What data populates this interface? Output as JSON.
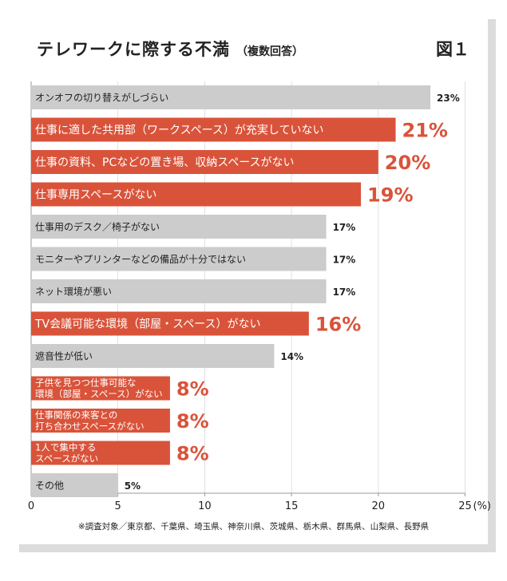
{
  "header": {
    "title": "テレワークに際する不満",
    "subtitle": "（複数回答）",
    "figure_label": "図１"
  },
  "footnote": "※調査対象／東京都、千葉県、埼玉県、神奈川県、茨城県、栃木県、群馬県、山梨県、長野県",
  "colors": {
    "highlight": "#d9533a",
    "normal": "#cccccc",
    "text": "#222222",
    "axis": "#999999"
  },
  "chart_data": {
    "type": "bar",
    "orientation": "horizontal",
    "title": "テレワークに際する不満（複数回答）",
    "categories": [
      [
        "オンオフの切り替えがしづらい"
      ],
      [
        "仕事に適した共用部（ワークスペース）が充実していない"
      ],
      [
        "仕事の資料、PCなどの置き場、収納スペースがない"
      ],
      [
        "仕事専用スペースがない"
      ],
      [
        "仕事用のデスク／椅子がない"
      ],
      [
        "モニターやプリンターなどの備品が十分ではない"
      ],
      [
        "ネット環境が悪い"
      ],
      [
        "TV会議可能な環境（部屋・スペース）がない"
      ],
      [
        "遮音性が低い"
      ],
      [
        "子供を見つつ仕事可能な",
        "環境（部屋・スペース）がない"
      ],
      [
        "仕事関係の来客との",
        "打ち合わせスペースがない"
      ],
      [
        "1人で集中する",
        "スペースがない"
      ],
      [
        "その他"
      ]
    ],
    "values": [
      23,
      21,
      20,
      19,
      17,
      17,
      17,
      16,
      14,
      8,
      8,
      8,
      5
    ],
    "value_labels": [
      "23%",
      "21%",
      "20%",
      "19%",
      "17%",
      "17%",
      "17%",
      "16%",
      "14%",
      "8%",
      "8%",
      "8%",
      "5%"
    ],
    "highlighted": [
      false,
      true,
      true,
      true,
      false,
      false,
      false,
      true,
      false,
      true,
      true,
      true,
      false
    ],
    "xticks": [
      0,
      5,
      10,
      15,
      20,
      25
    ],
    "xtick_labels": [
      "0",
      "5",
      "10",
      "15",
      "20",
      "25"
    ],
    "xunit": "(%)",
    "xlim": [
      0,
      25
    ],
    "grid": "vertical"
  }
}
